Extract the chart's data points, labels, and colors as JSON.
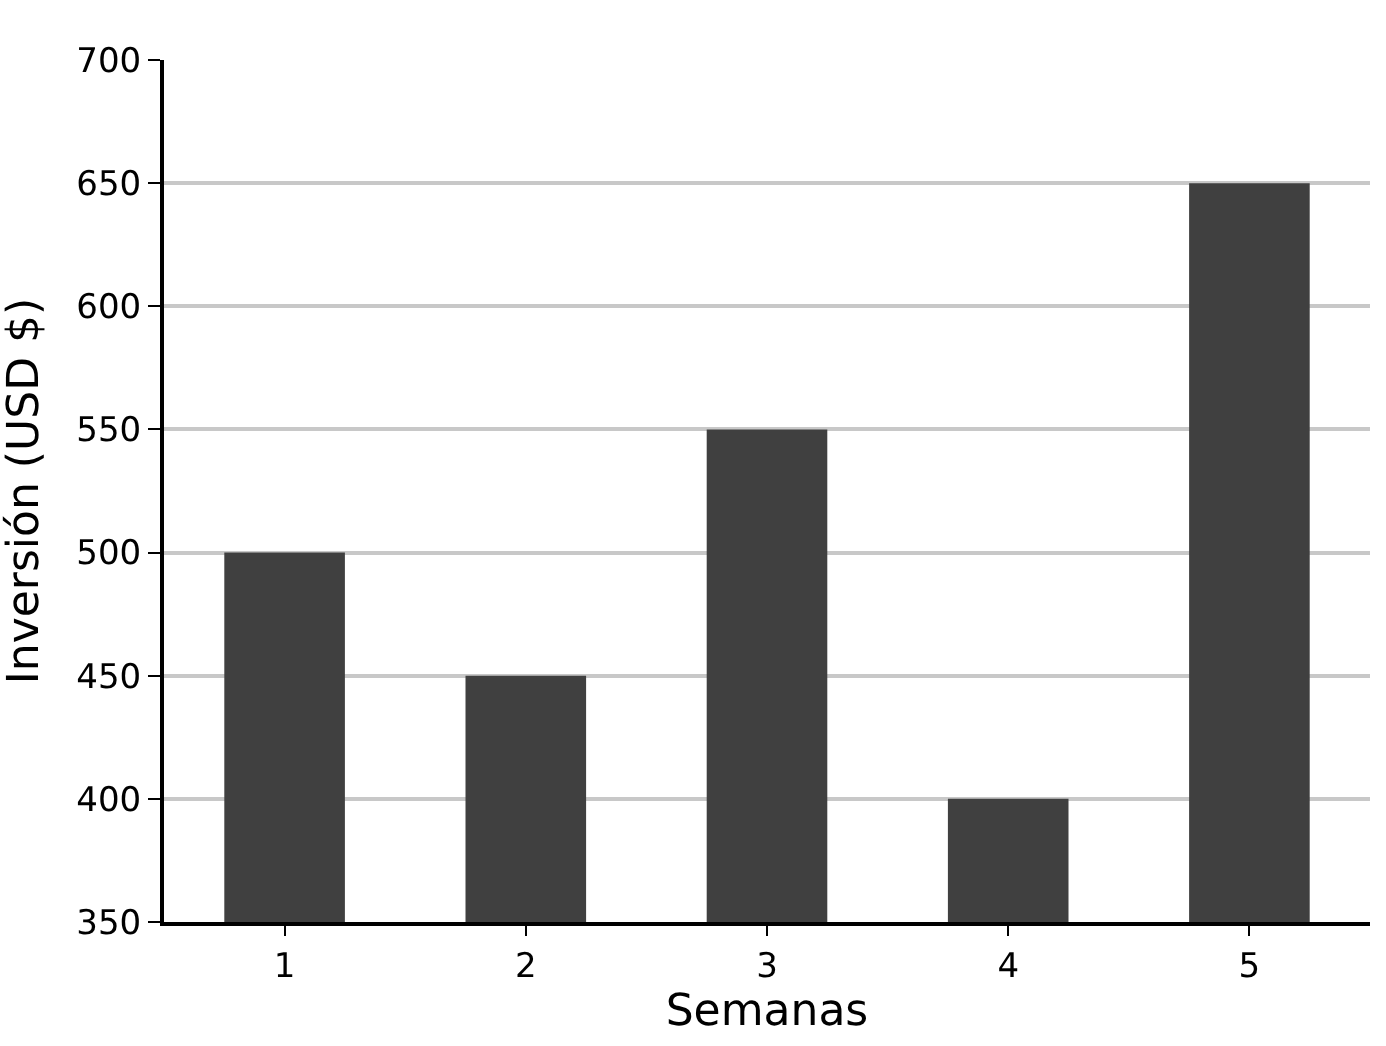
{
  "chart_data": {
    "type": "bar",
    "xlabel": "Semanas",
    "ylabel": "Inversión (USD $)",
    "categories": [
      "1",
      "2",
      "3",
      "4",
      "5"
    ],
    "values": [
      500,
      450,
      550,
      400,
      650
    ],
    "color": "#404040",
    "ylim": [
      350,
      700
    ],
    "yticks": [
      350,
      400,
      450,
      500,
      550,
      600,
      650,
      700
    ],
    "grid": "y"
  }
}
